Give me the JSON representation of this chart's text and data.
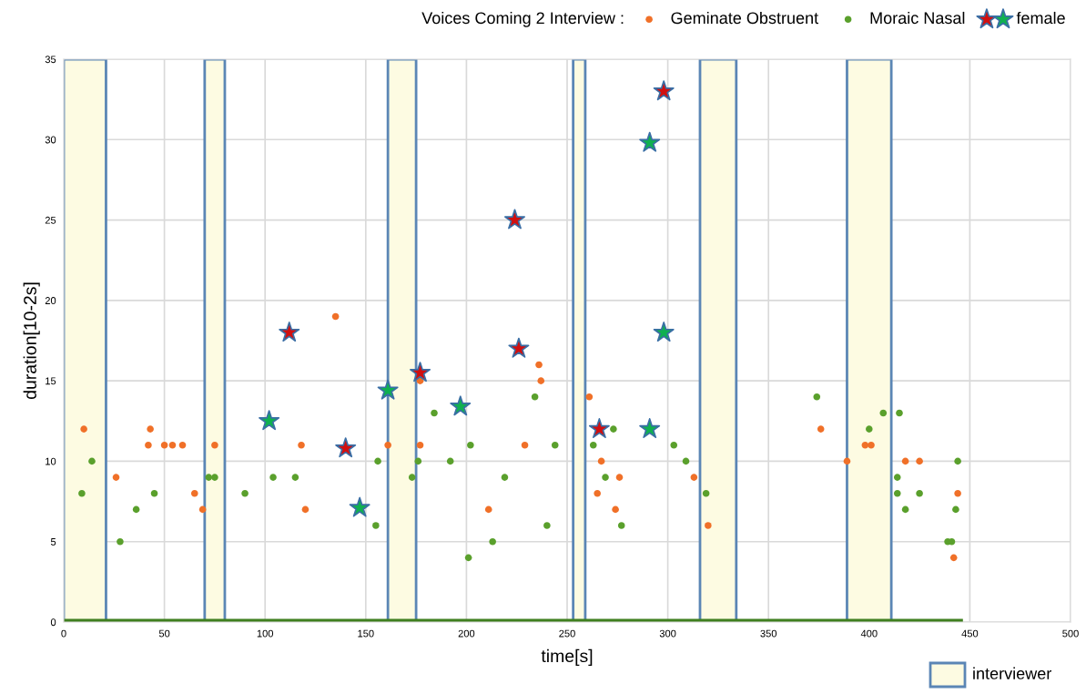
{
  "chart_data": {
    "type": "scatter",
    "title": "Voices Coming 2 Interview :",
    "xlabel": "time[s]",
    "ylabel": "duration[10-2s]",
    "xlim": [
      0,
      500
    ],
    "xticks": [
      0,
      50,
      100,
      150,
      200,
      250,
      300,
      350,
      400,
      450,
      500
    ],
    "ylim": [
      0,
      35
    ],
    "yticks": [
      0,
      5,
      10,
      15,
      20,
      25,
      30,
      35
    ],
    "grid": true,
    "legend": "right",
    "marker": "circle",
    "bands": [
      {
        "axis": "x",
        "from": 0,
        "to": 21,
        "label": "interviewer",
        "color": "#fdfbe2"
      },
      {
        "axis": "x",
        "from": 70,
        "to": 80,
        "color": "#fdfbe2"
      },
      {
        "axis": "x",
        "from": 161,
        "to": 175,
        "color": "#fdfbe2"
      },
      {
        "axis": "x",
        "from": 253,
        "to": 259,
        "color": "#fdfbe2"
      },
      {
        "axis": "x",
        "from": 316,
        "to": 334,
        "color": "#fdfbe2"
      },
      {
        "axis": "x",
        "from": 389,
        "to": 411,
        "color": "#fdfbe2"
      }
    ],
    "series": [
      {
        "type": "line",
        "color": "#3f7f1f",
        "marker": "none",
        "x": [
          0,
          445
        ],
        "values": [
          0,
          0
        ]
      },
      {
        "name": "Geminate Obstruent",
        "color": "#f07028",
        "x": [
          10,
          26,
          42,
          43,
          50,
          54,
          59,
          65,
          69,
          75,
          118,
          120,
          135,
          161,
          177,
          177,
          211,
          229,
          236,
          237,
          261,
          265,
          267,
          274,
          276,
          313,
          320,
          376,
          389,
          398,
          401,
          418,
          425,
          442,
          444
        ],
        "values": [
          12,
          9,
          11,
          12,
          11,
          11,
          11,
          8,
          7,
          11,
          11,
          7,
          19,
          11,
          15,
          11,
          7,
          11,
          16,
          15,
          14,
          8,
          10,
          7,
          9,
          9,
          6,
          12,
          10,
          11,
          11,
          10,
          10,
          4,
          8
        ]
      },
      {
        "name": "Moraic Nasal",
        "color": "#5aa02c",
        "x": [
          9,
          14,
          28,
          36,
          45,
          72,
          75,
          90,
          104,
          115,
          155,
          156,
          173,
          176,
          184,
          192,
          201,
          202,
          213,
          219,
          234,
          240,
          244,
          263,
          269,
          273,
          277,
          303,
          309,
          319,
          374,
          400,
          407,
          414,
          414,
          415,
          418,
          425,
          439,
          441,
          443,
          444
        ],
        "values": [
          8,
          10,
          5,
          7,
          8,
          9,
          9,
          8,
          9,
          9,
          6,
          10,
          9,
          10,
          13,
          10,
          4,
          11,
          5,
          9,
          14,
          6,
          11,
          11,
          9,
          12,
          6,
          11,
          10,
          8,
          14,
          12,
          13,
          8,
          9,
          13,
          7,
          8,
          5,
          5,
          7,
          10
        ]
      },
      {
        "name": "female",
        "color": "#d01010",
        "marker": "star",
        "x": [
          112,
          140,
          177,
          224,
          226,
          266,
          298
        ],
        "values": [
          18,
          10.8,
          15.5,
          25,
          17,
          12,
          33
        ]
      },
      {
        "color": "#10b050",
        "marker": "star",
        "x": [
          102,
          147,
          161,
          197,
          291,
          298,
          291
        ],
        "values": [
          12.5,
          7.1,
          14.4,
          13.4,
          29.8,
          18,
          12
        ]
      }
    ]
  }
}
